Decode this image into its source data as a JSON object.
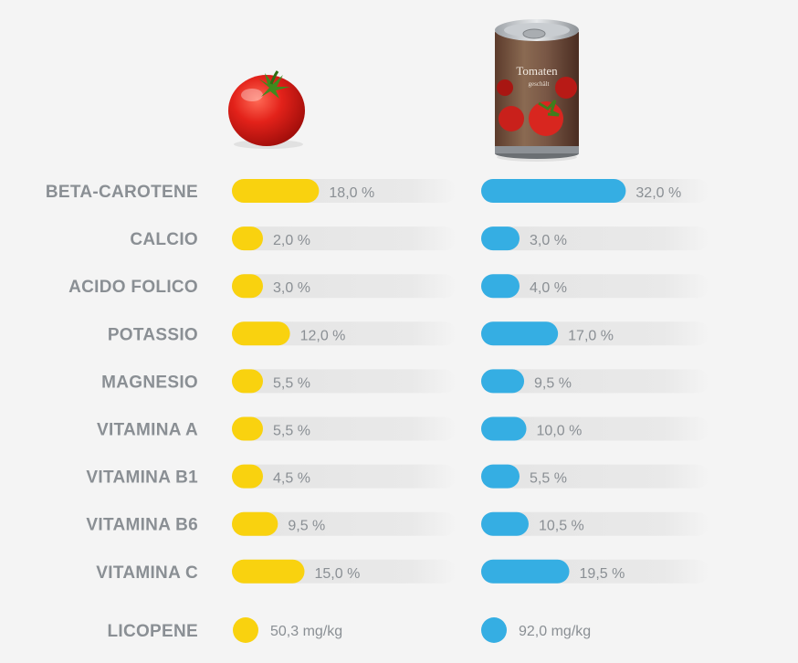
{
  "chart_data": {
    "type": "bar",
    "title": "",
    "value_unit": "%",
    "categories": [
      "BETA-CAROTENE",
      "CALCIO",
      "ACIDO FOLICO",
      "POTASSIO",
      "MAGNESIO",
      "VITAMINA A",
      "VITAMINA B1",
      "VITAMINA B6",
      "VITAMINA C"
    ],
    "series": [
      {
        "name": "fresh-tomato",
        "color": "#f9d20f",
        "values": [
          18.0,
          2.0,
          3.0,
          12.0,
          5.5,
          5.5,
          4.5,
          9.5,
          15.0
        ],
        "labels": [
          "18,0 %",
          "2,0 %",
          "3,0 %",
          "12,0 %",
          "5,5 %",
          "5,5 %",
          "4,5 %",
          "9,5 %",
          "15,0 %"
        ]
      },
      {
        "name": "canned-tomato",
        "color": "#35aee3",
        "values": [
          32.0,
          3.0,
          4.0,
          17.0,
          9.5,
          10.0,
          5.5,
          10.5,
          19.5
        ],
        "labels": [
          "32,0 %",
          "3,0 %",
          "4,0 %",
          "17,0 %",
          "9,5 %",
          "10,0 %",
          "5,5 %",
          "10,5 %",
          "19,5 %"
        ]
      }
    ],
    "extra_row": {
      "label": "LICOPENE",
      "values": [
        50.3,
        92.0
      ],
      "labels": [
        "50,3 mg/kg",
        "92,0 mg/kg"
      ]
    },
    "can_text": {
      "line1": "Tomaten",
      "line2": "geschält"
    }
  }
}
